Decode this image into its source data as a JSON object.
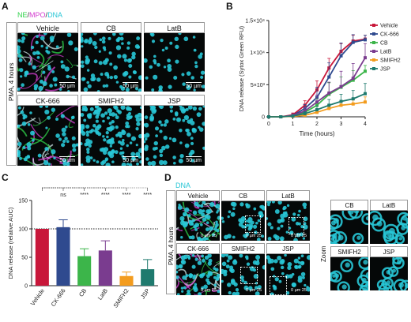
{
  "panel_a": {
    "letter": "A",
    "channel_title": {
      "ne": "NE",
      "sep1": "/",
      "mpo": "MPO",
      "sep2": "/",
      "dna": "DNA"
    },
    "colors": {
      "ne": "#2fd14a",
      "mpo": "#d43fd0",
      "dna": "#28c6d6"
    },
    "condition_label": "PMA, 4 hours",
    "images": [
      {
        "label": "Vehicle",
        "scale": "50 µm",
        "style": "netted"
      },
      {
        "label": "CB",
        "scale": "50 µm",
        "style": "round"
      },
      {
        "label": "LatB",
        "scale": "50 µm",
        "style": "sparse"
      },
      {
        "label": "CK-666",
        "scale": "50 µm",
        "style": "netted"
      },
      {
        "label": "SMIFH2",
        "scale": "50 µm",
        "style": "dense"
      },
      {
        "label": "JSP",
        "scale": "50 µm",
        "style": "round"
      }
    ]
  },
  "panel_b": {
    "letter": "B"
  },
  "panel_c": {
    "letter": "C"
  },
  "panel_d": {
    "letter": "D",
    "channel_title": "DNA",
    "condition_label": "PMA, 4 hours",
    "zoom_label": "Zoom",
    "images": [
      {
        "label": "Vehicle",
        "scale": "0   µm   25"
      },
      {
        "label": "CB",
        "scale": "0   µm   25"
      },
      {
        "label": "LatB",
        "scale": "0   µm   25"
      },
      {
        "label": "CK-666",
        "scale": "0   µm   25"
      },
      {
        "label": "SMIFH2",
        "scale": "0   µm   25"
      },
      {
        "label": "JSP",
        "scale": "0   µm   25"
      }
    ],
    "zoom_images": [
      {
        "label": "CB"
      },
      {
        "label": "LatB"
      },
      {
        "label": "SMIFH2"
      },
      {
        "label": "JSP"
      }
    ]
  },
  "chart_data": [
    {
      "type": "line",
      "title": "",
      "xlabel": "Time (hours)",
      "ylabel": "DNA release (Sytox Green RFU)",
      "x": [
        0,
        0.5,
        1,
        1.5,
        2,
        2.5,
        3,
        3.5,
        4
      ],
      "xticks": [
        "0",
        "1",
        "2",
        "3",
        "4"
      ],
      "xlim": [
        0,
        4
      ],
      "ylim": [
        0,
        15000
      ],
      "yticks": [
        {
          "value": 0,
          "label": "0"
        },
        {
          "value": 5000,
          "label": "5×10³"
        },
        {
          "value": 10000,
          "label": "1×10⁴"
        },
        {
          "value": 15000,
          "label": "1.5×10⁴"
        }
      ],
      "legend_position": "right",
      "series": [
        {
          "name": "Vehicle",
          "color": "#c8173a",
          "values": [
            0,
            0,
            300,
            1800,
            4200,
            7600,
            10200,
            11800,
            12100
          ],
          "errors": [
            0,
            0,
            300,
            700,
            1400,
            1500,
            1200,
            900,
            600
          ]
        },
        {
          "name": "CK-666",
          "color": "#2f4a8f",
          "values": [
            0,
            0,
            200,
            1300,
            3000,
            6200,
            9500,
            11600,
            12000
          ],
          "errors": [
            0,
            0,
            200,
            600,
            1600,
            2200,
            2000,
            1200,
            700
          ]
        },
        {
          "name": "CB",
          "color": "#3cb54a",
          "values": [
            0,
            0,
            150,
            700,
            1800,
            3500,
            4600,
            5700,
            7100
          ],
          "errors": [
            0,
            0,
            150,
            400,
            1000,
            1800,
            1600,
            1500,
            900
          ]
        },
        {
          "name": "LatB",
          "color": "#7a3c8f",
          "values": [
            0,
            0,
            200,
            900,
            2300,
            3700,
            4700,
            6000,
            9200
          ],
          "errors": [
            0,
            0,
            200,
            500,
            1100,
            1700,
            2400,
            2300,
            2200
          ]
        },
        {
          "name": "SMIFH2",
          "color": "#f39c1e",
          "values": [
            0,
            0,
            80,
            250,
            700,
            1300,
            1800,
            2000,
            2300
          ],
          "errors": [
            0,
            0,
            80,
            200,
            400,
            600,
            700,
            700,
            800
          ]
        },
        {
          "name": "JSP",
          "color": "#1f7a6e",
          "values": [
            0,
            0,
            120,
            500,
            1100,
            1800,
            2400,
            2800,
            3600
          ],
          "errors": [
            0,
            0,
            120,
            300,
            600,
            900,
            1100,
            1300,
            1600
          ]
        }
      ]
    },
    {
      "type": "bar",
      "title": "",
      "xlabel": "",
      "ylabel": "DNA release (relative AUC)",
      "categories": [
        "Vehicle",
        "CK-666",
        "CB",
        "LatB",
        "SMIFH2",
        "JSP"
      ],
      "values": [
        100,
        103,
        52,
        62,
        17,
        29
      ],
      "errors": [
        0,
        13,
        13,
        17,
        7,
        17
      ],
      "colors": [
        "#c8173a",
        "#2f4a8f",
        "#3cb54a",
        "#7a3c8f",
        "#f39c1e",
        "#1f7a6e"
      ],
      "ylim": [
        0,
        150
      ],
      "yticks": [
        0,
        50,
        100,
        150
      ],
      "reference_line": 100,
      "significance": [
        "ns",
        "****",
        "****",
        "****",
        "****"
      ]
    }
  ]
}
